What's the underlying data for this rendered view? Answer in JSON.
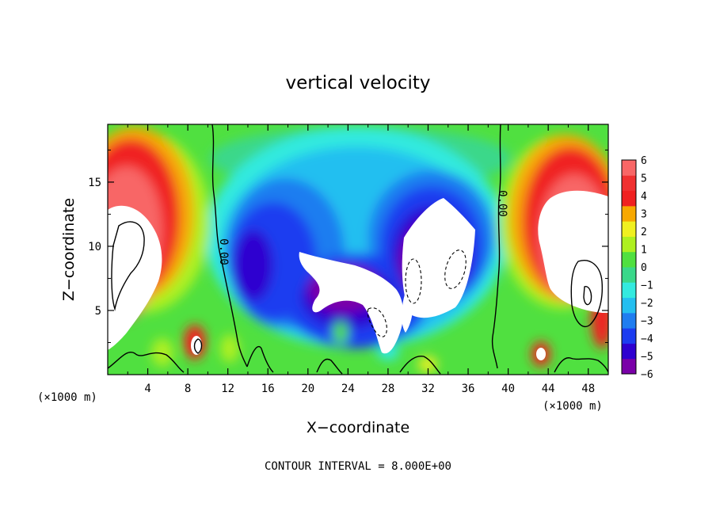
{
  "chart_data": {
    "type": "heatmap",
    "title": "vertical velocity",
    "xlabel": "X−coordinate",
    "ylabel": "Z−coordinate",
    "x_unit_label": "(×1000 m)",
    "z_unit_label": "(×1000 m)",
    "xlim": [
      0,
      50
    ],
    "ylim": [
      0,
      19.5
    ],
    "x_ticks": [
      4,
      8,
      12,
      16,
      20,
      24,
      28,
      32,
      36,
      40,
      44,
      48
    ],
    "x_tick_labels": [
      "4",
      "8",
      "12",
      "16",
      "20",
      "24",
      "28",
      "32",
      "36",
      "40",
      "44",
      "48"
    ],
    "y_ticks": [
      5,
      10,
      15
    ],
    "y_tick_labels": [
      "5",
      "10",
      "15"
    ],
    "colorbar": {
      "min": -6,
      "max": 6,
      "tick_labels": [
        "6",
        "5",
        "4",
        "3",
        "2",
        "1",
        "0",
        "−1",
        "−2",
        "−3",
        "−4",
        "−5",
        "−6"
      ],
      "colors": [
        "#7a00a8",
        "#2e00d0",
        "#1c3cf0",
        "#1f7df0",
        "#24bff0",
        "#33eadf",
        "#3ad88a",
        "#50e040",
        "#aef020",
        "#f0f020",
        "#f7a800",
        "#f02020",
        "#f03030",
        "#f86666"
      ]
    },
    "contour_labels": [
      "0.00",
      "0.00"
    ],
    "contour_interval_text": "CONTOUR INTERVAL = 8.000E+00",
    "out_of_range_color": "#ffffff",
    "contour_style": "solid positive, dashed negative"
  }
}
